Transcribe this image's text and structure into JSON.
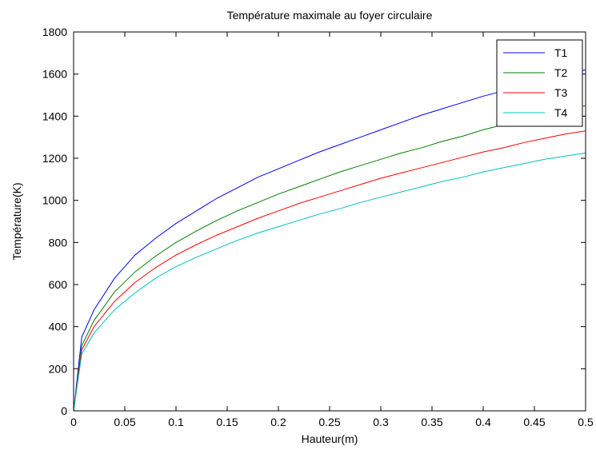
{
  "chart_data": {
    "type": "line",
    "title": "Température maximale au foyer circulaire",
    "xlabel": "Hauteur(m)",
    "ylabel": "Température(K)",
    "xlim": [
      0,
      0.5
    ],
    "ylim": [
      0,
      1800
    ],
    "xticks": [
      0,
      0.05,
      0.1,
      0.15,
      0.2,
      0.25,
      0.3,
      0.35,
      0.4,
      0.45,
      0.5
    ],
    "xtick_labels": [
      "0",
      "0.05",
      "0.1",
      "0.15",
      "0.2",
      "0.25",
      "0.3",
      "0.35",
      "0.4",
      "0.45",
      "0.5"
    ],
    "yticks": [
      0,
      200,
      400,
      600,
      800,
      1000,
      1200,
      1400,
      1600,
      1800
    ],
    "ytick_labels": [
      "0",
      "200",
      "400",
      "600",
      "800",
      "1000",
      "1200",
      "1400",
      "1600",
      "1800"
    ],
    "grid": false,
    "legend_position": "top-right",
    "x": [
      0,
      0.008,
      0.02,
      0.04,
      0.06,
      0.08,
      0.1,
      0.12,
      0.14,
      0.16,
      0.18,
      0.2,
      0.22,
      0.24,
      0.26,
      0.28,
      0.3,
      0.32,
      0.34,
      0.36,
      0.38,
      0.4,
      0.42,
      0.44,
      0.46,
      0.48,
      0.5
    ],
    "series": [
      {
        "name": "T1",
        "color": "#0000ff",
        "values": [
          0,
          350,
          480,
          630,
          740,
          820,
          890,
          950,
          1010,
          1060,
          1110,
          1150,
          1190,
          1230,
          1265,
          1300,
          1335,
          1370,
          1405,
          1435,
          1465,
          1495,
          1520,
          1550,
          1575,
          1600,
          1620
        ]
      },
      {
        "name": "T2",
        "color": "#008000",
        "values": [
          0,
          310,
          430,
          565,
          660,
          735,
          800,
          855,
          905,
          950,
          990,
          1030,
          1065,
          1100,
          1135,
          1165,
          1195,
          1225,
          1250,
          1280,
          1305,
          1335,
          1360,
          1385,
          1405,
          1430,
          1450
        ]
      },
      {
        "name": "T3",
        "color": "#ff0000",
        "values": [
          0,
          290,
          400,
          520,
          610,
          680,
          740,
          790,
          835,
          875,
          915,
          950,
          985,
          1015,
          1045,
          1075,
          1105,
          1130,
          1155,
          1180,
          1205,
          1230,
          1250,
          1275,
          1295,
          1315,
          1330
        ]
      },
      {
        "name": "T4",
        "color": "#00bfbf",
        "values": [
          0,
          270,
          370,
          480,
          560,
          630,
          685,
          730,
          770,
          810,
          845,
          875,
          905,
          935,
          960,
          990,
          1015,
          1040,
          1065,
          1090,
          1110,
          1135,
          1155,
          1175,
          1195,
          1210,
          1225
        ]
      }
    ]
  }
}
